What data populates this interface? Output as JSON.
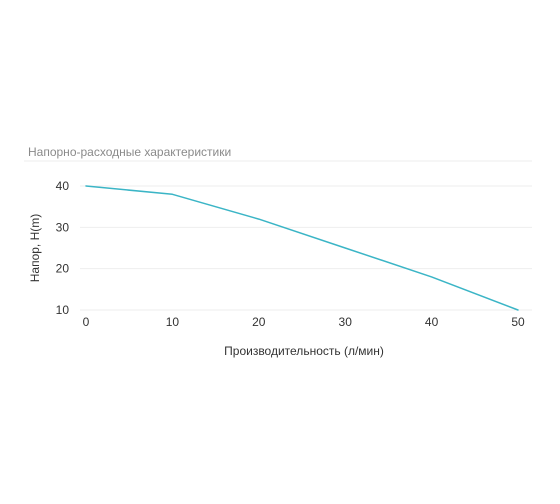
{
  "chart_data": {
    "type": "line",
    "title": "Напорно-расходные характеристики",
    "xlabel": "Производительность (л/мин)",
    "ylabel": "Напор, H(m)",
    "x": [
      0,
      10,
      20,
      30,
      40,
      50
    ],
    "series": [
      {
        "values": [
          40,
          38,
          32,
          25,
          18,
          10
        ],
        "color": "#3bb5c6"
      }
    ],
    "xticks": [
      0,
      10,
      20,
      30,
      40,
      50
    ],
    "yticks": [
      10,
      20,
      30,
      40
    ],
    "xlim": [
      0,
      50
    ],
    "ylim": [
      10,
      40
    ],
    "grid": true
  }
}
